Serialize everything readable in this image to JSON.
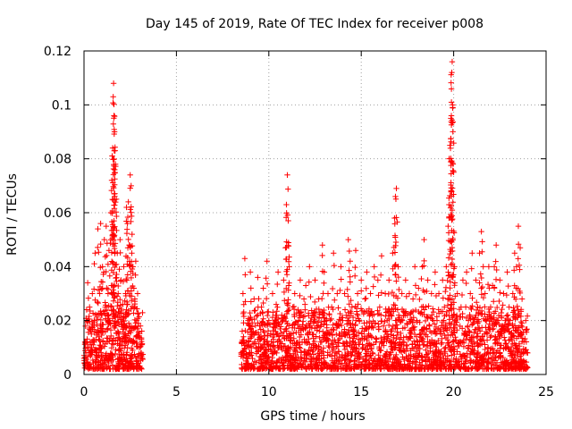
{
  "chart_data": {
    "type": "scatter",
    "title": "Day 145 of 2019, Rate Of TEC Index for receiver p008",
    "xlabel": "GPS time / hours",
    "ylabel": "ROTI / TECUs",
    "xlim": [
      0,
      25
    ],
    "ylim": [
      0,
      0.12
    ],
    "xticks": [
      0,
      5,
      10,
      15,
      20,
      25
    ],
    "xtick_labels": [
      "0",
      "5",
      "10",
      "15",
      "20",
      "25"
    ],
    "yticks": [
      0,
      0.02,
      0.04,
      0.06,
      0.08,
      0.1,
      0.12
    ],
    "ytick_labels": [
      "0",
      "0.02",
      "0.04",
      "0.06",
      "0.08",
      "0.1",
      "0.12"
    ],
    "grid": true,
    "marker": "+",
    "color": "#ff0000",
    "series": [
      {
        "name": "p008",
        "points": [
          [
            0.0,
            0.006
          ],
          [
            0.05,
            0.012
          ],
          [
            0.1,
            0.008
          ],
          [
            0.15,
            0.02
          ],
          [
            0.2,
            0.034
          ],
          [
            0.25,
            0.01
          ],
          [
            0.3,
            0.025
          ],
          [
            0.35,
            0.007
          ],
          [
            0.4,
            0.015
          ],
          [
            0.45,
            0.03
          ],
          [
            0.5,
            0.011
          ],
          [
            0.55,
            0.018
          ],
          [
            0.6,
            0.045
          ],
          [
            0.65,
            0.009
          ],
          [
            0.7,
            0.022
          ],
          [
            0.75,
            0.054
          ],
          [
            0.8,
            0.013
          ],
          [
            0.85,
            0.03
          ],
          [
            0.9,
            0.056
          ],
          [
            0.95,
            0.01
          ],
          [
            1.0,
            0.04
          ],
          [
            1.05,
            0.016
          ],
          [
            1.1,
            0.05
          ],
          [
            1.15,
            0.025
          ],
          [
            1.2,
            0.055
          ],
          [
            1.25,
            0.012
          ],
          [
            1.3,
            0.03
          ],
          [
            1.35,
            0.046
          ],
          [
            1.4,
            0.02
          ],
          [
            1.45,
            0.06
          ],
          [
            1.5,
            0.072
          ],
          [
            1.55,
            0.084
          ],
          [
            1.58,
            0.103
          ],
          [
            1.6,
            0.108
          ],
          [
            1.62,
            0.096
          ],
          [
            1.65,
            0.09
          ],
          [
            1.68,
            0.083
          ],
          [
            1.7,
            0.078
          ],
          [
            1.75,
            0.065
          ],
          [
            1.8,
            0.045
          ],
          [
            1.85,
            0.03
          ],
          [
            1.9,
            0.015
          ],
          [
            1.95,
            0.05
          ],
          [
            2.0,
            0.035
          ],
          [
            2.05,
            0.012
          ],
          [
            2.1,
            0.026
          ],
          [
            2.15,
            0.04
          ],
          [
            2.2,
            0.018
          ],
          [
            2.25,
            0.03
          ],
          [
            2.3,
            0.062
          ],
          [
            2.35,
            0.056
          ],
          [
            2.4,
            0.064
          ],
          [
            2.45,
            0.048
          ],
          [
            2.5,
            0.074
          ],
          [
            2.55,
            0.07
          ],
          [
            2.6,
            0.052
          ],
          [
            2.65,
            0.04
          ],
          [
            2.7,
            0.032
          ],
          [
            2.75,
            0.028
          ],
          [
            2.8,
            0.042
          ],
          [
            2.85,
            0.02
          ],
          [
            2.9,
            0.03
          ],
          [
            2.95,
            0.014
          ],
          [
            3.0,
            0.01
          ],
          [
            3.05,
            0.018
          ],
          [
            3.1,
            0.008
          ],
          [
            3.15,
            0.006
          ],
          [
            8.5,
            0.008
          ],
          [
            8.6,
            0.03
          ],
          [
            8.7,
            0.043
          ],
          [
            8.8,
            0.012
          ],
          [
            8.9,
            0.02
          ],
          [
            9.0,
            0.038
          ],
          [
            9.1,
            0.015
          ],
          [
            9.2,
            0.028
          ],
          [
            9.3,
            0.01
          ],
          [
            9.4,
            0.036
          ],
          [
            9.5,
            0.018
          ],
          [
            9.6,
            0.025
          ],
          [
            9.7,
            0.032
          ],
          [
            9.8,
            0.012
          ],
          [
            9.9,
            0.042
          ],
          [
            10.0,
            0.02
          ],
          [
            10.1,
            0.015
          ],
          [
            10.2,
            0.03
          ],
          [
            10.3,
            0.01
          ],
          [
            10.4,
            0.026
          ],
          [
            10.5,
            0.038
          ],
          [
            10.6,
            0.012
          ],
          [
            10.7,
            0.022
          ],
          [
            10.8,
            0.035
          ],
          [
            10.9,
            0.047
          ],
          [
            10.95,
            0.063
          ],
          [
            11.0,
            0.074
          ],
          [
            11.05,
            0.057
          ],
          [
            11.1,
            0.04
          ],
          [
            11.2,
            0.015
          ],
          [
            11.3,
            0.025
          ],
          [
            11.4,
            0.03
          ],
          [
            11.5,
            0.01
          ],
          [
            11.6,
            0.02
          ],
          [
            11.7,
            0.035
          ],
          [
            11.8,
            0.012
          ],
          [
            11.9,
            0.028
          ],
          [
            12.0,
            0.033
          ],
          [
            12.1,
            0.015
          ],
          [
            12.2,
            0.04
          ],
          [
            12.3,
            0.01
          ],
          [
            12.4,
            0.022
          ],
          [
            12.5,
            0.035
          ],
          [
            12.6,
            0.018
          ],
          [
            12.7,
            0.028
          ],
          [
            12.8,
            0.012
          ],
          [
            12.9,
            0.048
          ],
          [
            13.0,
            0.038
          ],
          [
            13.1,
            0.02
          ],
          [
            13.2,
            0.03
          ],
          [
            13.3,
            0.015
          ],
          [
            13.4,
            0.025
          ],
          [
            13.5,
            0.045
          ],
          [
            13.6,
            0.012
          ],
          [
            13.7,
            0.03
          ],
          [
            13.8,
            0.018
          ],
          [
            13.9,
            0.04
          ],
          [
            14.0,
            0.02
          ],
          [
            14.1,
            0.03
          ],
          [
            14.2,
            0.012
          ],
          [
            14.3,
            0.05
          ],
          [
            14.4,
            0.042
          ],
          [
            14.5,
            0.025
          ],
          [
            14.6,
            0.015
          ],
          [
            14.7,
            0.046
          ],
          [
            14.8,
            0.03
          ],
          [
            14.9,
            0.02
          ],
          [
            15.0,
            0.035
          ],
          [
            15.1,
            0.01
          ],
          [
            15.2,
            0.028
          ],
          [
            15.3,
            0.038
          ],
          [
            15.4,
            0.015
          ],
          [
            15.5,
            0.03
          ],
          [
            15.6,
            0.022
          ],
          [
            15.7,
            0.04
          ],
          [
            15.8,
            0.012
          ],
          [
            15.9,
            0.035
          ],
          [
            16.0,
            0.025
          ],
          [
            16.1,
            0.044
          ],
          [
            16.2,
            0.018
          ],
          [
            16.3,
            0.03
          ],
          [
            16.4,
            0.015
          ],
          [
            16.5,
            0.035
          ],
          [
            16.6,
            0.022
          ],
          [
            16.7,
            0.045
          ],
          [
            16.8,
            0.058
          ],
          [
            16.85,
            0.066
          ],
          [
            16.9,
            0.069
          ],
          [
            17.0,
            0.04
          ],
          [
            17.1,
            0.02
          ],
          [
            17.2,
            0.03
          ],
          [
            17.3,
            0.012
          ],
          [
            17.4,
            0.035
          ],
          [
            17.5,
            0.022
          ],
          [
            17.6,
            0.03
          ],
          [
            17.7,
            0.015
          ],
          [
            17.8,
            0.028
          ],
          [
            17.9,
            0.04
          ],
          [
            18.0,
            0.02
          ],
          [
            18.1,
            0.032
          ],
          [
            18.2,
            0.015
          ],
          [
            18.3,
            0.04
          ],
          [
            18.4,
            0.05
          ],
          [
            18.5,
            0.025
          ],
          [
            18.6,
            0.035
          ],
          [
            18.7,
            0.018
          ],
          [
            18.8,
            0.03
          ],
          [
            18.9,
            0.012
          ],
          [
            19.0,
            0.038
          ],
          [
            19.1,
            0.02
          ],
          [
            19.2,
            0.03
          ],
          [
            19.3,
            0.015
          ],
          [
            19.4,
            0.035
          ],
          [
            19.5,
            0.025
          ],
          [
            19.6,
            0.04
          ],
          [
            19.7,
            0.055
          ],
          [
            19.75,
            0.063
          ],
          [
            19.8,
            0.085
          ],
          [
            19.85,
            0.095
          ],
          [
            19.88,
            0.101
          ],
          [
            19.9,
            0.112
          ],
          [
            19.92,
            0.116
          ],
          [
            19.95,
            0.1
          ],
          [
            20.0,
            0.075
          ],
          [
            20.05,
            0.04
          ],
          [
            20.1,
            0.02
          ],
          [
            20.2,
            0.03
          ],
          [
            20.3,
            0.012
          ],
          [
            20.4,
            0.025
          ],
          [
            20.5,
            0.035
          ],
          [
            20.6,
            0.015
          ],
          [
            20.7,
            0.038
          ],
          [
            20.8,
            0.02
          ],
          [
            20.9,
            0.03
          ],
          [
            21.0,
            0.045
          ],
          [
            21.1,
            0.012
          ],
          [
            21.2,
            0.035
          ],
          [
            21.3,
            0.025
          ],
          [
            21.4,
            0.045
          ],
          [
            21.5,
            0.053
          ],
          [
            21.6,
            0.04
          ],
          [
            21.7,
            0.03
          ],
          [
            21.8,
            0.015
          ],
          [
            21.9,
            0.04
          ],
          [
            22.0,
            0.025
          ],
          [
            22.1,
            0.033
          ],
          [
            22.2,
            0.04
          ],
          [
            22.3,
            0.048
          ],
          [
            22.4,
            0.02
          ],
          [
            22.5,
            0.035
          ],
          [
            22.6,
            0.015
          ],
          [
            22.7,
            0.03
          ],
          [
            22.8,
            0.02
          ],
          [
            22.9,
            0.038
          ],
          [
            23.0,
            0.025
          ],
          [
            23.1,
            0.015
          ],
          [
            23.2,
            0.03
          ],
          [
            23.3,
            0.045
          ],
          [
            23.4,
            0.04
          ],
          [
            23.5,
            0.055
          ],
          [
            23.6,
            0.047
          ],
          [
            23.7,
            0.028
          ],
          [
            23.8,
            0.012
          ],
          [
            23.9,
            0.02
          ],
          [
            24.0,
            0.008
          ]
        ]
      }
    ],
    "baseline_noise": {
      "segments": [
        [
          0.0,
          3.2
        ],
        [
          8.5,
          24.0
        ]
      ],
      "ymin": 0.002,
      "ymax": 0.018
    }
  }
}
